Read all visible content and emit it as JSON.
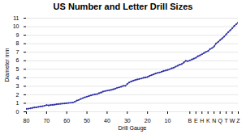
{
  "chart_data": {
    "type": "line",
    "title": "US Number and Letter Drill Sizes",
    "xlabel": "Drill Gauge",
    "ylabel": "Diameter mm",
    "categories": [
      "80",
      null,
      null,
      null,
      null,
      null,
      null,
      null,
      null,
      null,
      "70",
      null,
      null,
      null,
      null,
      null,
      null,
      null,
      null,
      null,
      "60",
      null,
      null,
      null,
      null,
      null,
      null,
      null,
      null,
      null,
      "50",
      null,
      null,
      null,
      null,
      null,
      null,
      null,
      null,
      null,
      "40",
      null,
      null,
      null,
      null,
      null,
      null,
      null,
      null,
      null,
      "30",
      null,
      null,
      null,
      null,
      null,
      null,
      null,
      null,
      null,
      "20",
      null,
      null,
      null,
      null,
      null,
      null,
      null,
      null,
      null,
      "10",
      null,
      null,
      null,
      null,
      null,
      null,
      null,
      null,
      null,
      null,
      "B",
      null,
      null,
      "E",
      null,
      null,
      "H",
      null,
      null,
      "K",
      null,
      null,
      "N",
      null,
      null,
      "Q",
      null,
      null,
      "T",
      null,
      null,
      "W",
      null,
      null,
      "Z"
    ],
    "values": [
      0.343,
      0.368,
      0.406,
      0.457,
      0.508,
      0.533,
      0.572,
      0.635,
      0.66,
      0.711,
      0.787,
      0.742,
      0.787,
      0.813,
      0.838,
      0.889,
      0.914,
      0.94,
      0.965,
      0.991,
      1.016,
      1.041,
      1.067,
      1.092,
      1.181,
      1.321,
      1.397,
      1.511,
      1.613,
      1.702,
      1.778,
      1.854,
      1.93,
      1.994,
      2.057,
      2.083,
      2.184,
      2.261,
      2.375,
      2.438,
      2.489,
      2.527,
      2.578,
      2.642,
      2.705,
      2.819,
      2.87,
      2.946,
      3.048,
      3.048,
      3.264,
      3.454,
      3.569,
      3.658,
      3.734,
      3.797,
      3.861,
      3.912,
      3.988,
      4.039,
      4.089,
      4.216,
      4.305,
      4.394,
      4.496,
      4.572,
      4.623,
      4.699,
      4.8,
      4.851,
      4.915,
      5.004,
      5.105,
      5.182,
      5.309,
      5.41,
      5.537,
      5.613,
      5.791,
      5.994,
      5.944,
      6.045,
      6.147,
      6.248,
      6.35,
      6.528,
      6.629,
      6.756,
      6.909,
      7.036,
      7.137,
      7.366,
      7.493,
      7.671,
      8.026,
      8.204,
      8.433,
      8.611,
      8.839,
      9.093,
      9.347,
      9.576,
      9.804,
      10.084,
      10.287,
      10.49
    ],
    "color": "#3333aa",
    "marker": "circle",
    "ylim": [
      0,
      11
    ],
    "yticks": [
      0,
      1,
      2,
      3,
      4,
      5,
      6,
      7,
      8,
      9,
      10,
      11
    ],
    "grid": true
  }
}
